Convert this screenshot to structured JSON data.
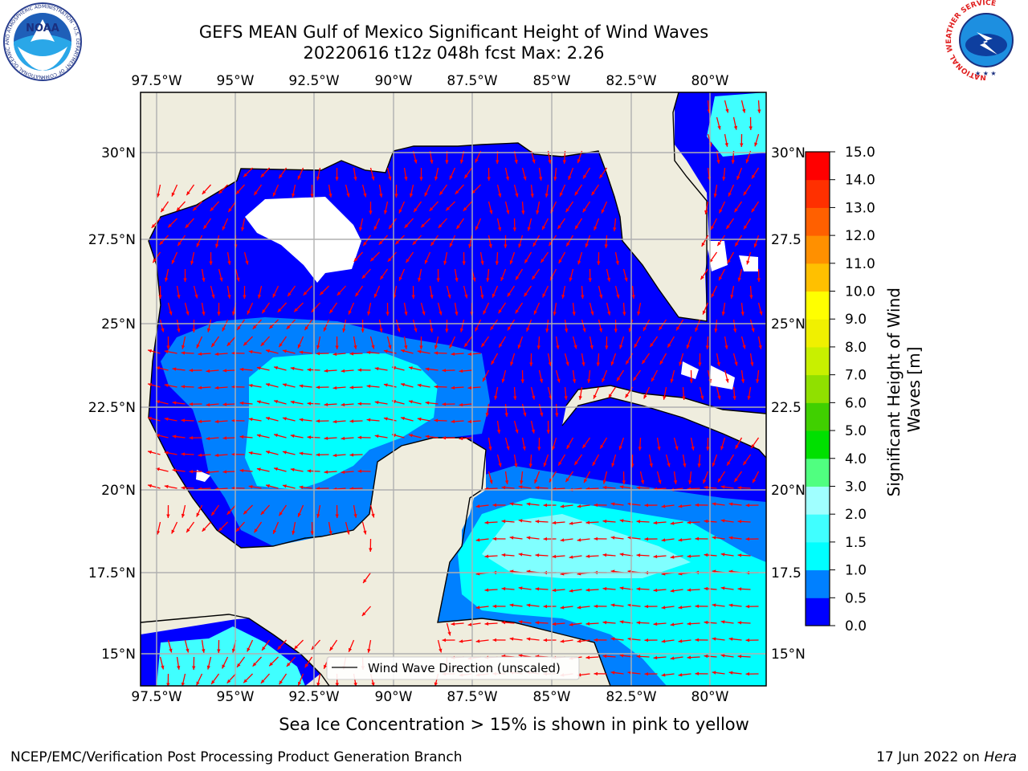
{
  "header": {
    "title_line1": "GEFS MEAN Gulf of Mexico Significant Height of Wind Waves",
    "title_line2": "20220616 t12z 048h fcst   Max: 2.26"
  },
  "logos": {
    "noaa_text": "NOAA",
    "noaa_ring": "NATIONAL OCEANIC AND ATMOSPHERIC ADMINISTRATION · U.S. DEPARTMENT OF COMMERCE",
    "nws_ring": "NATIONAL WEATHER SERVICE"
  },
  "map": {
    "lon_ticks": [
      "97.5°W",
      "95°W",
      "92.5°W",
      "90°W",
      "87.5°W",
      "85°W",
      "82.5°W",
      "80°W"
    ],
    "lat_ticks_left": [
      "30°N",
      "27.5°N",
      "25°N",
      "22.5°N",
      "20°N",
      "17.5°N",
      "15°N"
    ],
    "lat_ticks_right": [
      "30°N",
      "27.5",
      "25°N",
      "22.5",
      "20°N",
      "17.5",
      "15°N"
    ],
    "legend_label": "Wind Wave Direction (unscaled)",
    "colors": {
      "land": "#efedde",
      "arrow": "#ff0000",
      "grid": "#b0b0b0"
    }
  },
  "colorbar": {
    "label": "Significant Height of Wind Waves [m]",
    "ticks": [
      "0.0",
      "0.5",
      "1.0",
      "1.5",
      "2.0",
      "3.0",
      "4.0",
      "5.0",
      "6.0",
      "7.0",
      "8.0",
      "9.0",
      "10.0",
      "11.0",
      "12.0",
      "13.0",
      "14.0",
      "15.0"
    ],
    "colors": [
      "#0000ff",
      "#0080ff",
      "#00ffff",
      "#40ffff",
      "#a0ffff",
      "#50ff80",
      "#00e000",
      "#40d000",
      "#90e000",
      "#c8f000",
      "#f0f000",
      "#ffff00",
      "#ffc000",
      "#ff9000",
      "#ff6000",
      "#ff3000",
      "#ff0000"
    ]
  },
  "footer": {
    "ice_note": "Sea Ice Concentration > 15% is shown in pink to yellow",
    "credit": "NCEP/EMC/Verification Post Processing Product Generation Branch",
    "date_prefix": "17 Jun 2022 on ",
    "machine": "Hera"
  }
}
